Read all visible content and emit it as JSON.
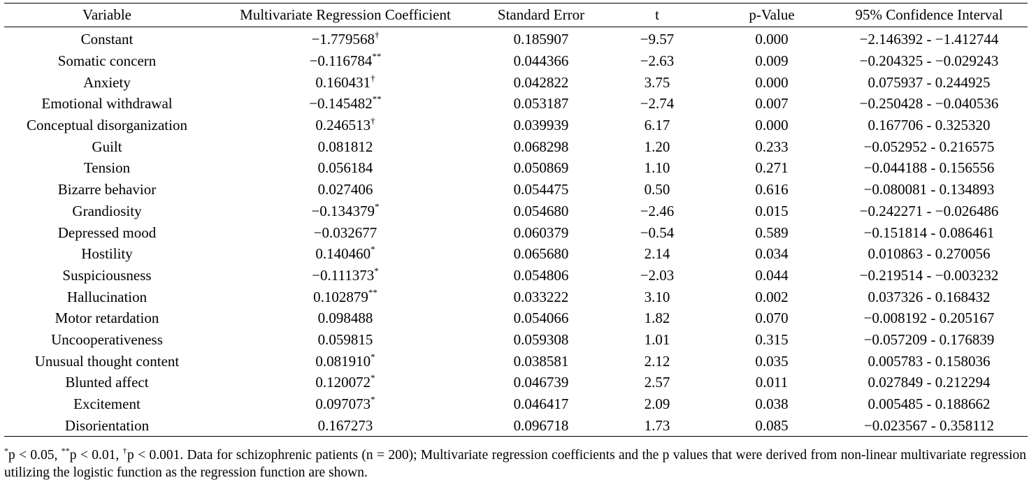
{
  "table": {
    "headers": [
      "Variable",
      "Multivariate Regression Coefficient",
      "Standard Error",
      "t",
      "p-Value",
      "95% Confidence Interval"
    ],
    "rows": [
      {
        "variable": "Constant",
        "coef": "−1.779568",
        "mark": "†",
        "se": "0.185907",
        "t": "−9.57",
        "p": "0.000",
        "ci": "−2.146392 - −1.412744"
      },
      {
        "variable": "Somatic concern",
        "coef": "−0.116784",
        "mark": "**",
        "se": "0.044366",
        "t": "−2.63",
        "p": "0.009",
        "ci": "−0.204325 - −0.029243"
      },
      {
        "variable": "Anxiety",
        "coef": "0.160431",
        "mark": "†",
        "se": "0.042822",
        "t": "3.75",
        "p": "0.000",
        "ci": "0.075937 - 0.244925"
      },
      {
        "variable": "Emotional withdrawal",
        "coef": "−0.145482",
        "mark": "**",
        "se": "0.053187",
        "t": "−2.74",
        "p": "0.007",
        "ci": "−0.250428 - −0.040536"
      },
      {
        "variable": "Conceptual disorganization",
        "coef": "0.246513",
        "mark": "†",
        "se": "0.039939",
        "t": "6.17",
        "p": "0.000",
        "ci": "0.167706 - 0.325320"
      },
      {
        "variable": "Guilt",
        "coef": "0.081812",
        "mark": "",
        "se": "0.068298",
        "t": "1.20",
        "p": "0.233",
        "ci": "−0.052952 - 0.216575"
      },
      {
        "variable": "Tension",
        "coef": "0.056184",
        "mark": "",
        "se": "0.050869",
        "t": "1.10",
        "p": "0.271",
        "ci": "−0.044188 - 0.156556"
      },
      {
        "variable": "Bizarre behavior",
        "coef": "0.027406",
        "mark": "",
        "se": "0.054475",
        "t": "0.50",
        "p": "0.616",
        "ci": "−0.080081 - 0.134893"
      },
      {
        "variable": "Grandiosity",
        "coef": "−0.134379",
        "mark": "*",
        "se": "0.054680",
        "t": "−2.46",
        "p": "0.015",
        "ci": "−0.242271 - −0.026486"
      },
      {
        "variable": "Depressed mood",
        "coef": "−0.032677",
        "mark": "",
        "se": "0.060379",
        "t": "−0.54",
        "p": "0.589",
        "ci": "−0.151814 - 0.086461"
      },
      {
        "variable": "Hostility",
        "coef": "0.140460",
        "mark": "*",
        "se": "0.065680",
        "t": "2.14",
        "p": "0.034",
        "ci": "0.010863 - 0.270056"
      },
      {
        "variable": "Suspiciousness",
        "coef": "−0.111373",
        "mark": "*",
        "se": "0.054806",
        "t": "−2.03",
        "p": "0.044",
        "ci": "−0.219514 - −0.003232"
      },
      {
        "variable": "Hallucination",
        "coef": "0.102879",
        "mark": "**",
        "se": "0.033222",
        "t": "3.10",
        "p": "0.002",
        "ci": "0.037326 - 0.168432"
      },
      {
        "variable": "Motor retardation",
        "coef": "0.098488",
        "mark": "",
        "se": "0.054066",
        "t": "1.82",
        "p": "0.070",
        "ci": "−0.008192 - 0.205167"
      },
      {
        "variable": "Uncooperativeness",
        "coef": "0.059815",
        "mark": "",
        "se": "0.059308",
        "t": "1.01",
        "p": "0.315",
        "ci": "−0.057209 - 0.176839"
      },
      {
        "variable": "Unusual thought content",
        "coef": "0.081910",
        "mark": "*",
        "se": "0.038581",
        "t": "2.12",
        "p": "0.035",
        "ci": "0.005783 - 0.158036"
      },
      {
        "variable": "Blunted affect",
        "coef": "0.120072",
        "mark": "*",
        "se": "0.046739",
        "t": "2.57",
        "p": "0.011",
        "ci": "0.027849 - 0.212294"
      },
      {
        "variable": "Excitement",
        "coef": "0.097073",
        "mark": "*",
        "se": "0.046417",
        "t": "2.09",
        "p": "0.038",
        "ci": "0.005485 - 0.188662"
      },
      {
        "variable": "Disorientation",
        "coef": "0.167273",
        "mark": "",
        "se": "0.096718",
        "t": "1.73",
        "p": "0.085",
        "ci": "−0.023567 - 0.358112"
      }
    ]
  },
  "footnote": {
    "m1": "*",
    "t1": "p < 0.05, ",
    "m2": "**",
    "t2": "p < 0.01, ",
    "m3": "†",
    "t3": "p < 0.001. Data for schizophrenic patients (n = 200); Multivariate regression coefficients and the p values that were derived from non-linear multivariate regression utilizing the logistic function as the regression function are shown."
  }
}
